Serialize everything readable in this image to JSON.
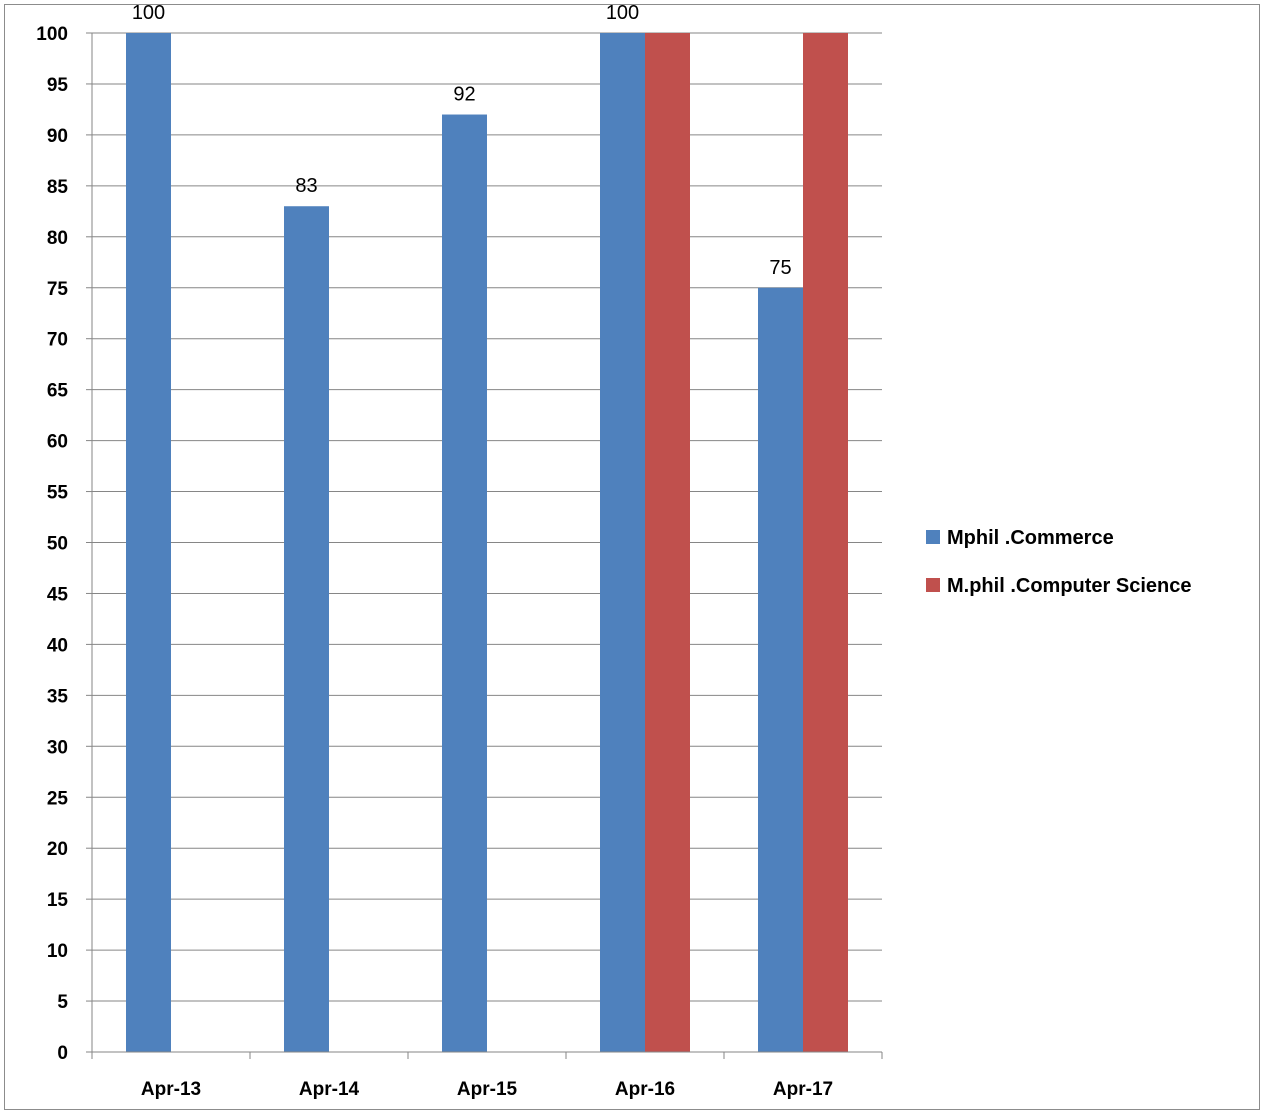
{
  "chart_data": {
    "type": "bar",
    "categories": [
      "Apr-13",
      "Apr-14",
      "Apr-15",
      "Apr-16",
      "Apr-17"
    ],
    "series": [
      {
        "name": "Mphil .Commerce",
        "color": "#4F81BD",
        "values": [
          100,
          83,
          92,
          100,
          75
        ],
        "data_labels": [
          "100",
          "83",
          "92",
          "100",
          "75"
        ]
      },
      {
        "name": "M.phil .Computer Science",
        "color": "#C0504D",
        "values": [
          null,
          null,
          null,
          100,
          100
        ],
        "data_labels": [
          null,
          null,
          null,
          null,
          null
        ]
      }
    ],
    "ylim": [
      0,
      100
    ],
    "ytick_step": 5,
    "grid": "horizontal",
    "legend_position": "right",
    "title": "",
    "xlabel": "",
    "ylabel": ""
  }
}
